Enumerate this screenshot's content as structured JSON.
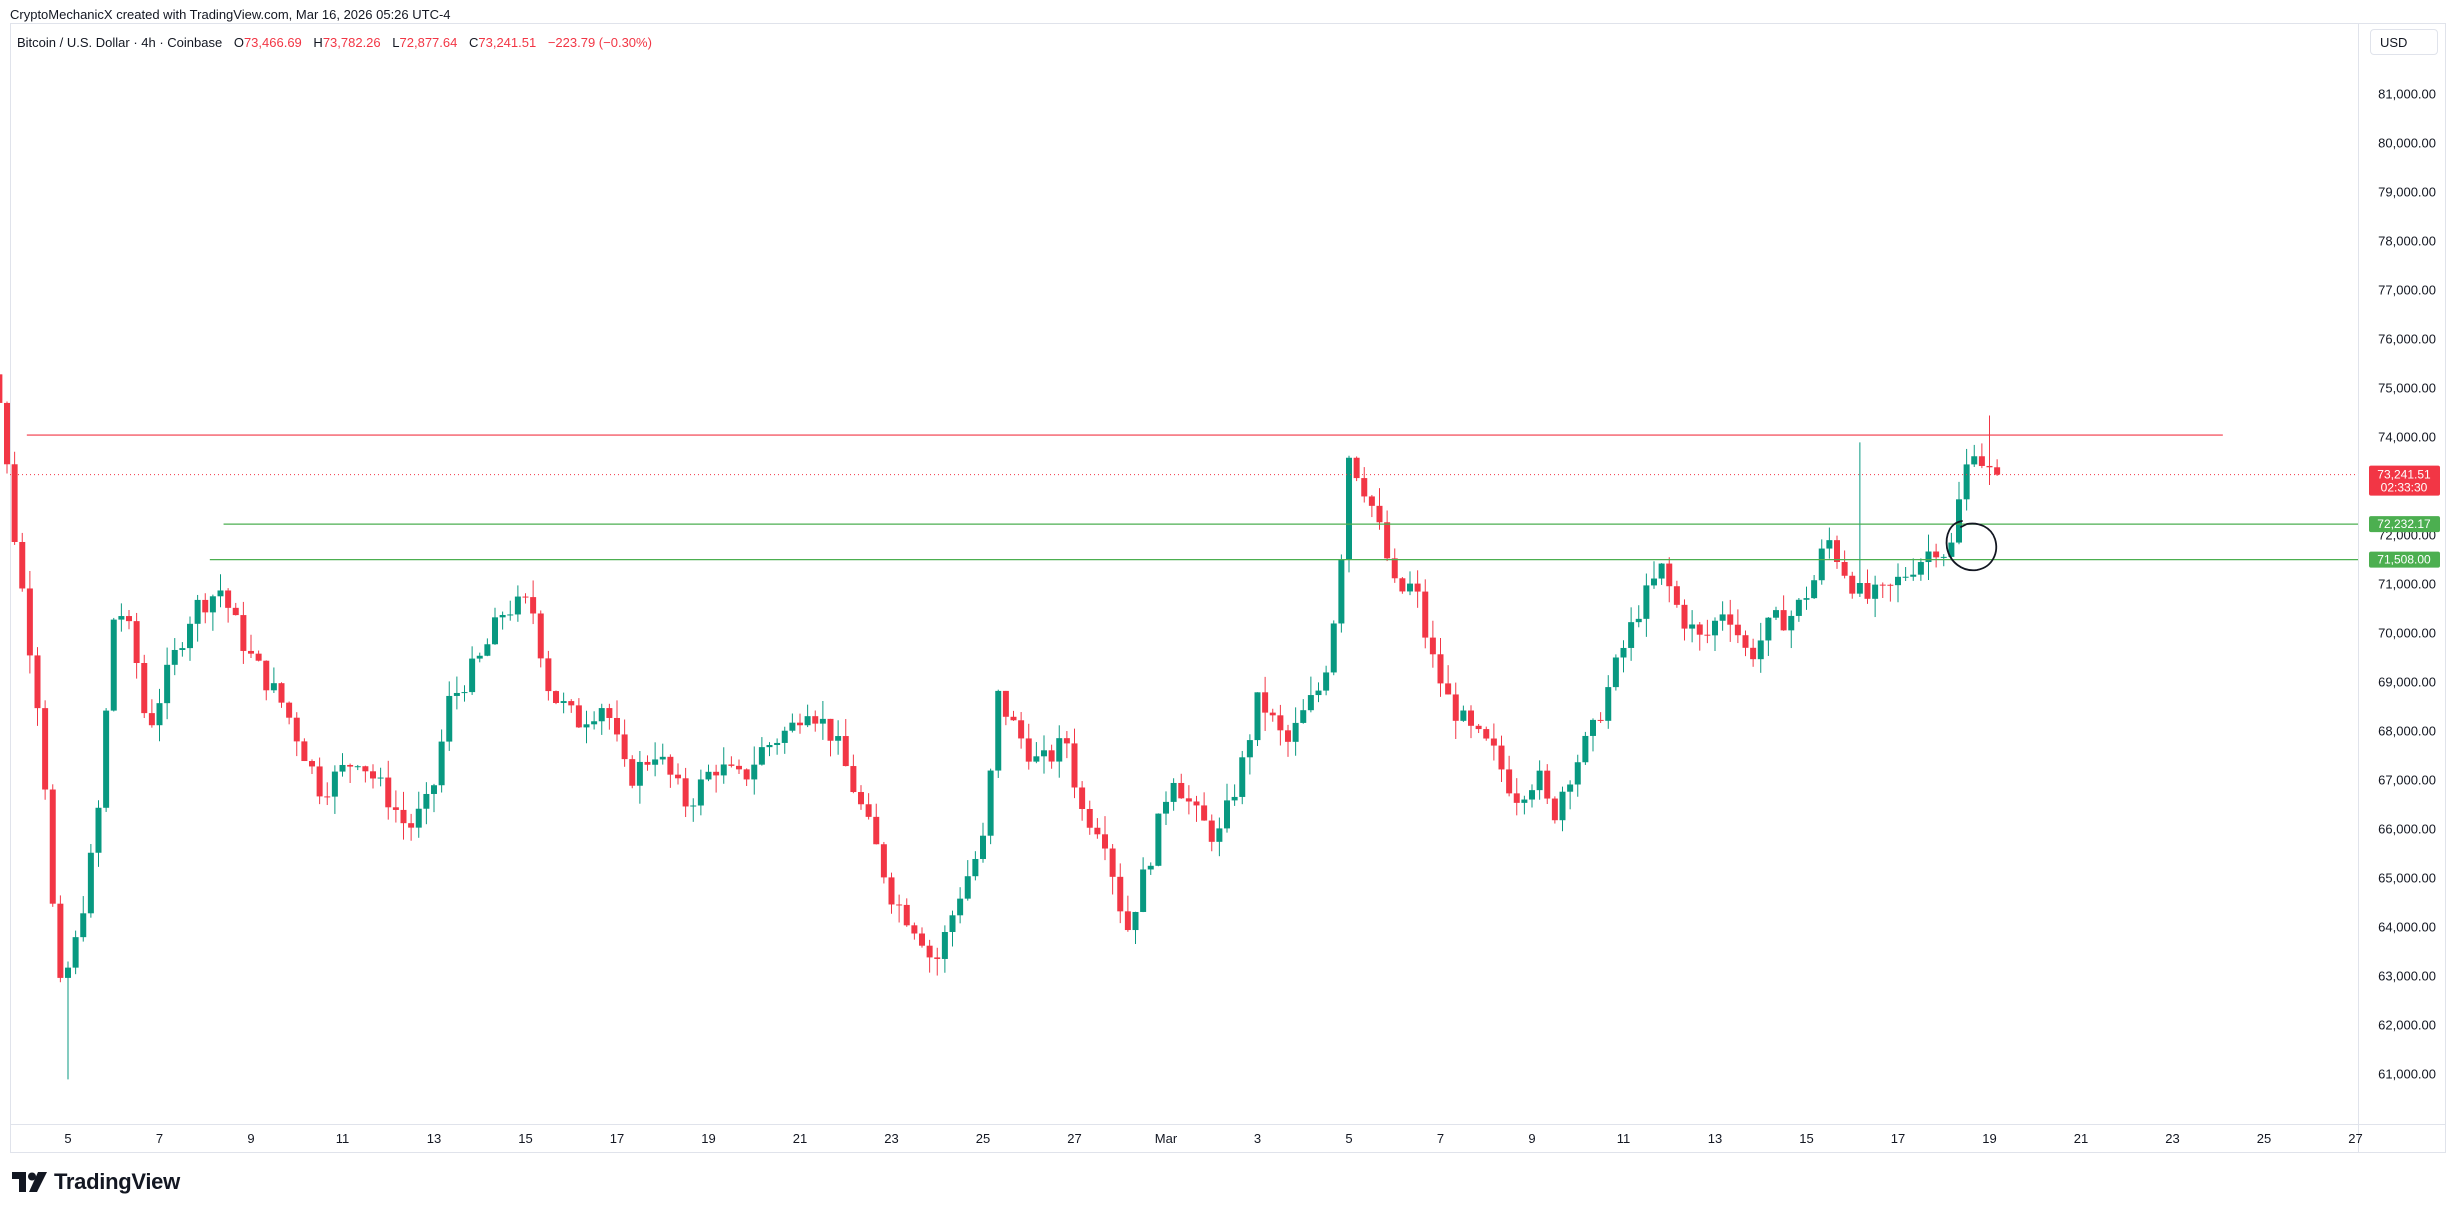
{
  "credit_line": "CryptoMechanicX created with TradingView.com, Mar 16, 2026 05:26 UTC-4",
  "legend": {
    "symbol": "Bitcoin / U.S. Dollar · 4h · Coinbase",
    "open_label": "O",
    "open_value": "73,466.69",
    "high_label": "H",
    "high_value": "73,782.26",
    "low_label": "L",
    "low_value": "72,877.64",
    "close_label": "C",
    "close_value": "73,241.51",
    "change": "−223.79 (−0.30%)"
  },
  "currency": "USD",
  "brand": "TradingView",
  "colors": {
    "up": "#089981",
    "down": "#f23645",
    "support": "#4caf50",
    "resistance": "#f23645"
  },
  "chart_data": {
    "type": "candlestick",
    "symbol": "BTCUSD",
    "timeframe": "4h",
    "exchange": "Coinbase",
    "x_tick_labels": [
      "5",
      "7",
      "9",
      "11",
      "13",
      "15",
      "17",
      "19",
      "21",
      "23",
      "25",
      "27",
      "Mar",
      "3",
      "5",
      "7",
      "9",
      "11",
      "13",
      "15",
      "17",
      "19",
      "21",
      "23",
      "25",
      "27"
    ],
    "y_tick_labels": [
      "61,000.00",
      "62,000.00",
      "63,000.00",
      "64,000.00",
      "65,000.00",
      "66,000.00",
      "67,000.00",
      "68,000.00",
      "69,000.00",
      "70,000.00",
      "71,000.00",
      "72,000.00",
      "73,000.00",
      "74,000.00",
      "75,000.00",
      "76,000.00",
      "77,000.00",
      "78,000.00",
      "79,000.00",
      "80,000.00",
      "81,000.00"
    ],
    "ylim": [
      60500,
      81500
    ],
    "last_price": {
      "value": 73241.51,
      "label": "73,241.51",
      "countdown": "02:33:30"
    },
    "levels": [
      {
        "kind": "resistance",
        "value": 74050,
        "from_day": 4.1,
        "to_day": 23.1
      },
      {
        "kind": "support",
        "value": 72232.17,
        "label": "72,232.17",
        "from_day": 8.4,
        "to_day": 30
      },
      {
        "kind": "support",
        "value": 71508.0,
        "label": "71,508.00",
        "from_day": 8.1,
        "to_day": 30
      }
    ],
    "anchors": [
      [
        3.0,
        76500
      ],
      [
        3.6,
        75300
      ],
      [
        4.0,
        72000
      ],
      [
        4.6,
        68000
      ],
      [
        4.95,
        62600
      ],
      [
        5.3,
        63500
      ],
      [
        5.8,
        66000
      ],
      [
        6.2,
        70700
      ],
      [
        6.6,
        69800
      ],
      [
        6.9,
        68000
      ],
      [
        7.4,
        69300
      ],
      [
        7.9,
        70500
      ],
      [
        8.5,
        70900
      ],
      [
        9.1,
        69600
      ],
      [
        9.9,
        68500
      ],
      [
        10.7,
        66800
      ],
      [
        11.5,
        67500
      ],
      [
        12.2,
        66600
      ],
      [
        12.6,
        66000
      ],
      [
        13.1,
        66600
      ],
      [
        13.5,
        68600
      ],
      [
        14.2,
        69500
      ],
      [
        14.7,
        70500
      ],
      [
        15.3,
        70600
      ],
      [
        15.7,
        68800
      ],
      [
        16.3,
        68200
      ],
      [
        16.9,
        68600
      ],
      [
        17.4,
        67000
      ],
      [
        18.0,
        67600
      ],
      [
        18.7,
        66500
      ],
      [
        19.3,
        67300
      ],
      [
        19.9,
        67000
      ],
      [
        20.3,
        67600
      ],
      [
        21.0,
        68100
      ],
      [
        21.3,
        68600
      ],
      [
        21.9,
        67900
      ],
      [
        22.4,
        66700
      ],
      [
        22.8,
        65700
      ],
      [
        23.2,
        64600
      ],
      [
        23.8,
        63900
      ],
      [
        24.1,
        63200
      ],
      [
        24.7,
        64800
      ],
      [
        25.2,
        65800
      ],
      [
        25.5,
        68700
      ],
      [
        25.9,
        68000
      ],
      [
        26.4,
        67300
      ],
      [
        27.0,
        67800
      ],
      [
        27.3,
        66400
      ],
      [
        27.8,
        66000
      ],
      [
        28.3,
        63900
      ],
      [
        28.9,
        65700
      ],
      [
        29.3,
        67200
      ],
      [
        29.8,
        66300
      ],
      [
        30.3,
        65800
      ],
      [
        30.8,
        67200
      ],
      [
        31.2,
        68700
      ],
      [
        31.8,
        67700
      ],
      [
        32.2,
        68400
      ],
      [
        32.6,
        69000
      ],
      [
        32.95,
        71000
      ],
      [
        33.15,
        73700
      ],
      [
        33.6,
        72800
      ],
      [
        33.9,
        71900
      ],
      [
        34.2,
        70800
      ],
      [
        34.6,
        71000
      ],
      [
        34.9,
        69700
      ],
      [
        35.3,
        68700
      ],
      [
        35.8,
        68000
      ],
      [
        36.3,
        67600
      ],
      [
        36.8,
        66700
      ],
      [
        37.3,
        67100
      ],
      [
        37.6,
        66200
      ],
      [
        37.9,
        67000
      ],
      [
        38.5,
        68000
      ],
      [
        39.0,
        69300
      ],
      [
        39.5,
        70500
      ],
      [
        40.0,
        71300
      ],
      [
        40.4,
        70400
      ],
      [
        40.9,
        69800
      ],
      [
        41.4,
        70600
      ],
      [
        41.9,
        69500
      ],
      [
        42.4,
        70200
      ],
      [
        42.9,
        70400
      ],
      [
        43.4,
        71200
      ],
      [
        43.6,
        72000
      ],
      [
        44.0,
        71300
      ],
      [
        44.4,
        70700
      ],
      [
        44.9,
        70800
      ],
      [
        45.5,
        71400
      ],
      [
        46.0,
        71800
      ],
      [
        46.3,
        71600
      ],
      [
        46.6,
        73200
      ],
      [
        46.85,
        73900
      ],
      [
        47.1,
        73300
      ],
      [
        47.25,
        73241.51
      ]
    ]
  }
}
